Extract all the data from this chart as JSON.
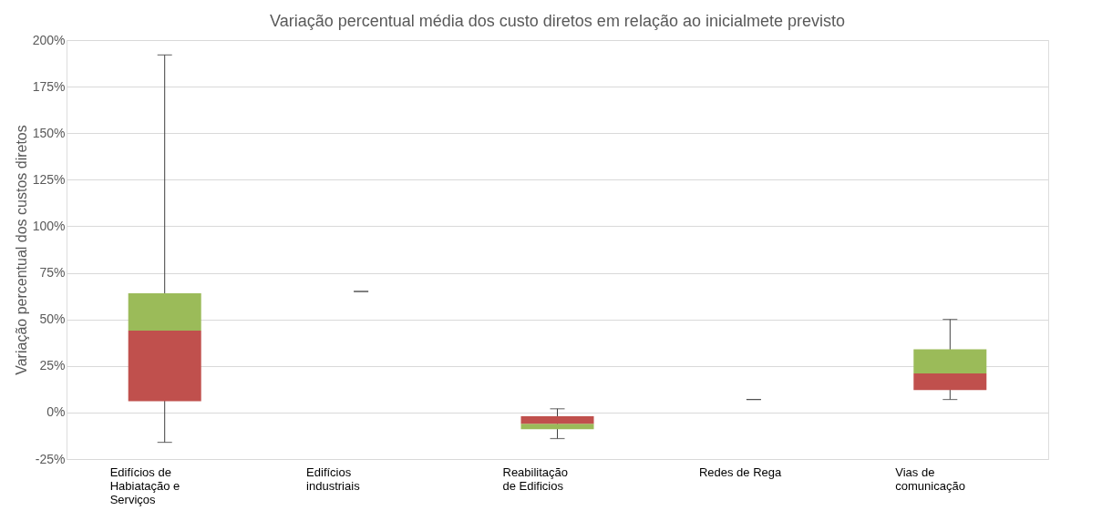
{
  "chart_data": {
    "type": "box",
    "title": "Variação percentual média dos custo diretos em relação ao inicialmete previsto",
    "ylabel": "Variação percentual dos custos diretos",
    "categories": [
      "Edifícios de Habiatação e Serviços",
      "Edifícios industriais",
      "Reabilitação de Edificios",
      "Redes de Rega",
      "Vias de comunicação"
    ],
    "boxes": [
      {
        "low": -16,
        "q1": 6,
        "median": 44,
        "q3": 64,
        "high": 192
      },
      {
        "low": 65,
        "q1": 65,
        "median": 65,
        "q3": 65,
        "high": 65
      },
      {
        "low": -14,
        "q1": -9,
        "median": -6,
        "q3": -2,
        "high": 2
      },
      {
        "low": 7,
        "q1": 7,
        "median": 7,
        "q3": 7,
        "high": 7
      },
      {
        "low": 7,
        "q1": 12,
        "median": 21,
        "q3": 34,
        "high": 50
      }
    ],
    "colors": [
      [
        "#c0504d",
        "#9bbb59"
      ],
      [
        "#c0504d",
        "#9bbb59"
      ],
      [
        "#9bbb59",
        "#c0504d"
      ],
      [
        "#c0504d",
        "#9bbb59"
      ],
      [
        "#c0504d",
        "#9bbb59"
      ]
    ],
    "ylim": [
      -25,
      200
    ],
    "yticks": [
      {
        "value": -25,
        "label": "-25%"
      },
      {
        "value": 0,
        "label": "0%"
      },
      {
        "value": 25,
        "label": "25%"
      },
      {
        "value": 50,
        "label": "50%"
      },
      {
        "value": 75,
        "label": "75%"
      },
      {
        "value": 100,
        "label": "100%"
      },
      {
        "value": 125,
        "label": "125%"
      },
      {
        "value": 150,
        "label": "150%"
      },
      {
        "value": 175,
        "label": "175%"
      },
      {
        "value": 200,
        "label": "200%"
      }
    ],
    "grid": "y"
  }
}
